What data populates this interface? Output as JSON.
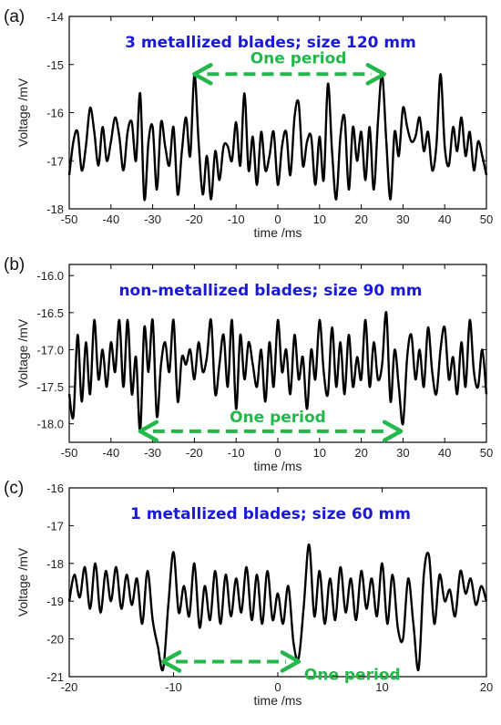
{
  "theme": {
    "title_color": "#1a1ad6",
    "annotation_color": "#22b84a",
    "trace_color": "#000000"
  },
  "chart_data": [
    {
      "type": "line",
      "panel_label": "(a)",
      "title": "3 metallized blades; size 120 mm",
      "xlabel": "time /ms",
      "ylabel": "Voltage /mV",
      "xlim": [
        -50,
        50
      ],
      "ylim": [
        -18,
        -14
      ],
      "xticks": [
        -50,
        -40,
        -30,
        -20,
        -10,
        0,
        10,
        20,
        30,
        40,
        50
      ],
      "yticks": [
        -18,
        -17,
        -16,
        -15,
        -14
      ],
      "xtick_labels": [
        "-50",
        "-40",
        "-30",
        "-20",
        "-10",
        "0",
        "10",
        "20",
        "30",
        "40",
        "50"
      ],
      "ytick_labels": [
        "-18",
        "-17",
        "-16",
        "-15",
        "-14"
      ],
      "annotation": {
        "text": "One period",
        "x_start": -20,
        "x_end": 25.5,
        "y": -15.2
      },
      "series": [
        {
          "x": [
            -50,
            -49,
            -48,
            -47,
            -46,
            -45,
            -44,
            -43,
            -42,
            -41,
            -40,
            -39,
            -38,
            -37,
            -36,
            -35,
            -34,
            -33,
            -32,
            -31,
            -30,
            -29,
            -28,
            -27,
            -26,
            -25,
            -24,
            -23,
            -22,
            -21,
            -20,
            -19,
            -18,
            -17,
            -16,
            -15,
            -14,
            -13,
            -12,
            -11,
            -10,
            -9,
            -8,
            -7,
            -6,
            -5,
            -4,
            -3,
            -2,
            -1,
            0,
            1,
            2,
            3,
            4,
            5,
            6,
            7,
            8,
            9,
            10,
            11,
            12,
            13,
            14,
            15,
            16,
            17,
            18,
            19,
            20,
            21,
            22,
            23,
            24,
            25,
            26,
            27,
            28,
            29,
            30,
            31,
            32,
            33,
            34,
            35,
            36,
            37,
            38,
            39,
            40,
            41,
            42,
            43,
            44,
            45,
            46,
            47,
            48,
            49,
            50
          ],
          "y": [
            -17.3,
            -16.6,
            -16.4,
            -17.2,
            -16.7,
            -15.9,
            -16.4,
            -17.1,
            -16.3,
            -17.0,
            -16.6,
            -16.1,
            -16.5,
            -17.2,
            -16.4,
            -16.2,
            -17.0,
            -15.6,
            -17.8,
            -16.6,
            -16.3,
            -17.6,
            -16.2,
            -16.7,
            -17.1,
            -16.3,
            -17.7,
            -16.8,
            -16.1,
            -16.9,
            -15.2,
            -16.6,
            -17.7,
            -16.9,
            -17.8,
            -16.8,
            -17.4,
            -16.7,
            -16.7,
            -17.0,
            -16.2,
            -17.1,
            -15.6,
            -17.2,
            -16.5,
            -17.5,
            -16.4,
            -17.2,
            -16.9,
            -16.4,
            -17.5,
            -16.7,
            -16.4,
            -17.3,
            -16.1,
            -15.8,
            -17.1,
            -16.6,
            -16.5,
            -17.5,
            -16.5,
            -17.4,
            -15.4,
            -16.8,
            -17.8,
            -16.5,
            -16.1,
            -17.6,
            -16.3,
            -17.0,
            -16.4,
            -17.4,
            -16.3,
            -17.6,
            -16.2,
            -15.2,
            -16.6,
            -17.8,
            -16.4,
            -16.9,
            -15.9,
            -16.3,
            -16.6,
            -16.5,
            -16.1,
            -16.8,
            -16.4,
            -17.2,
            -16.7,
            -15.2,
            -16.7,
            -17.1,
            -16.3,
            -16.8,
            -16.1,
            -16.9,
            -16.4,
            -17.2,
            -16.6,
            -16.9,
            -17.3
          ]
        }
      ]
    },
    {
      "type": "line",
      "panel_label": "(b)",
      "title": "non-metallized blades; size 90 mm",
      "xlabel": "time /ms",
      "ylabel": "Voltage /mV",
      "xlim": [
        -50,
        50
      ],
      "ylim": [
        -18.25,
        -15.85
      ],
      "xticks": [
        -50,
        -40,
        -30,
        -20,
        -10,
        0,
        10,
        20,
        30,
        40,
        50
      ],
      "yticks": [
        -18.0,
        -17.5,
        -17.0,
        -16.5,
        -16.0
      ],
      "xtick_labels": [
        "-50",
        "-40",
        "-30",
        "-20",
        "-10",
        "0",
        "10",
        "20",
        "30",
        "40",
        "50"
      ],
      "ytick_labels": [
        "-18.0",
        "-17.5",
        "-17.0",
        "-16.5",
        "-16.0"
      ],
      "annotation": {
        "text": "One period",
        "x_start": -33,
        "x_end": 29.5,
        "y": -18.1
      },
      "series": [
        {
          "x": [
            -50,
            -49,
            -48,
            -47,
            -46,
            -45,
            -44,
            -43,
            -42,
            -41,
            -40,
            -39,
            -38,
            -37,
            -36,
            -35,
            -34,
            -33,
            -32,
            -31,
            -30,
            -29,
            -28,
            -27,
            -26,
            -25,
            -24,
            -23,
            -22,
            -21,
            -20,
            -19,
            -18,
            -17,
            -16,
            -15,
            -14,
            -13,
            -12,
            -11,
            -10,
            -9,
            -8,
            -7,
            -6,
            -5,
            -4,
            -3,
            -2,
            -1,
            0,
            1,
            2,
            3,
            4,
            5,
            6,
            7,
            8,
            9,
            10,
            11,
            12,
            13,
            14,
            15,
            16,
            17,
            18,
            19,
            20,
            21,
            22,
            23,
            24,
            25,
            26,
            27,
            28,
            29,
            30,
            31,
            32,
            33,
            34,
            35,
            36,
            37,
            38,
            39,
            40,
            41,
            42,
            43,
            44,
            45,
            46,
            47,
            48,
            49,
            50
          ],
          "y": [
            -17.6,
            -17.9,
            -16.8,
            -17.7,
            -16.9,
            -17.6,
            -16.6,
            -17.4,
            -17.0,
            -17.5,
            -16.9,
            -17.3,
            -16.6,
            -17.5,
            -16.6,
            -17.6,
            -17.1,
            -18.1,
            -16.7,
            -17.3,
            -16.6,
            -17.9,
            -17.2,
            -16.9,
            -17.3,
            -16.6,
            -17.7,
            -17.1,
            -17.2,
            -17.0,
            -17.4,
            -16.9,
            -17.3,
            -17.1,
            -16.6,
            -17.6,
            -17.2,
            -16.8,
            -17.5,
            -16.6,
            -17.8,
            -16.8,
            -17.4,
            -16.9,
            -17.2,
            -17.5,
            -17.0,
            -17.7,
            -16.9,
            -17.5,
            -16.6,
            -17.3,
            -17.0,
            -17.6,
            -16.8,
            -17.4,
            -17.1,
            -17.8,
            -17.0,
            -17.4,
            -16.6,
            -17.3,
            -17.6,
            -16.7,
            -17.5,
            -16.9,
            -17.6,
            -16.8,
            -17.5,
            -17.1,
            -17.4,
            -16.6,
            -17.5,
            -16.9,
            -17.4,
            -17.2,
            -16.5,
            -17.7,
            -17.0,
            -17.5,
            -18.0,
            -17.1,
            -16.8,
            -17.4,
            -17.0,
            -17.5,
            -16.7,
            -17.3,
            -17.6,
            -17.0,
            -16.7,
            -17.4,
            -17.1,
            -17.6,
            -16.9,
            -17.5,
            -16.6,
            -17.3,
            -17.5,
            -17.0,
            -17.6
          ]
        }
      ]
    },
    {
      "type": "line",
      "panel_label": "(c)",
      "title": "1 metallized blades; size 60 mm",
      "xlabel": "time /ms",
      "ylabel": "Voltage /mV",
      "xlim": [
        -20,
        20
      ],
      "ylim": [
        -21,
        -16
      ],
      "xticks": [
        -20,
        -10,
        0,
        10,
        20
      ],
      "yticks": [
        -21,
        -20,
        -19,
        -18,
        -17,
        -16
      ],
      "xtick_labels": [
        "-20",
        "-10",
        "0",
        "10",
        "20"
      ],
      "ytick_labels": [
        "-21",
        "-20",
        "-19",
        "-18",
        "-17",
        "-16"
      ],
      "annotation": {
        "text": "One period",
        "x_start": -11,
        "x_end": 2,
        "y": -20.6
      },
      "series": [
        {
          "x": [
            -20,
            -19.5,
            -19,
            -18.5,
            -18,
            -17.5,
            -17,
            -16.5,
            -16,
            -15.5,
            -15,
            -14.5,
            -14,
            -13.5,
            -13,
            -12.5,
            -12,
            -11.5,
            -11,
            -10.5,
            -10,
            -9.5,
            -9,
            -8.5,
            -8,
            -7.5,
            -7,
            -6.5,
            -6,
            -5.5,
            -5,
            -4.5,
            -4,
            -3.5,
            -3,
            -2.5,
            -2,
            -1.5,
            -1,
            -0.5,
            0,
            0.5,
            1,
            1.5,
            2,
            2.5,
            3,
            3.5,
            4,
            4.5,
            5,
            5.5,
            6,
            6.5,
            7,
            7.5,
            8,
            8.5,
            9,
            9.5,
            10,
            10.5,
            11,
            11.5,
            12,
            12.5,
            13,
            13.5,
            14,
            14.5,
            15,
            15.5,
            16,
            16.5,
            17,
            17.5,
            18,
            18.5,
            19,
            19.5,
            20
          ],
          "y": [
            -19.0,
            -18.3,
            -18.9,
            -18.1,
            -19.2,
            -18.0,
            -19.3,
            -18.2,
            -19.0,
            -18.1,
            -19.2,
            -18.3,
            -19.1,
            -18.4,
            -19.6,
            -18.2,
            -19.5,
            -20.2,
            -20.8,
            -19.1,
            -17.7,
            -19.3,
            -18.6,
            -19.4,
            -18.0,
            -19.7,
            -18.6,
            -19.5,
            -18.2,
            -19.6,
            -18.3,
            -19.4,
            -18.4,
            -19.3,
            -18.1,
            -19.5,
            -18.3,
            -19.6,
            -18.2,
            -19.5,
            -18.8,
            -19.6,
            -18.6,
            -20.1,
            -20.5,
            -19.1,
            -17.5,
            -19.4,
            -18.2,
            -19.6,
            -18.4,
            -19.5,
            -18.1,
            -19.3,
            -18.4,
            -19.5,
            -18.2,
            -19.2,
            -18.4,
            -19.4,
            -18.0,
            -19.6,
            -18.3,
            -19.7,
            -20.0,
            -18.4,
            -19.6,
            -20.8,
            -18.3,
            -17.8,
            -19.6,
            -18.3,
            -19.0,
            -18.7,
            -19.4,
            -18.2,
            -18.8,
            -18.4,
            -19.1,
            -18.6,
            -19.0
          ]
        }
      ]
    }
  ]
}
